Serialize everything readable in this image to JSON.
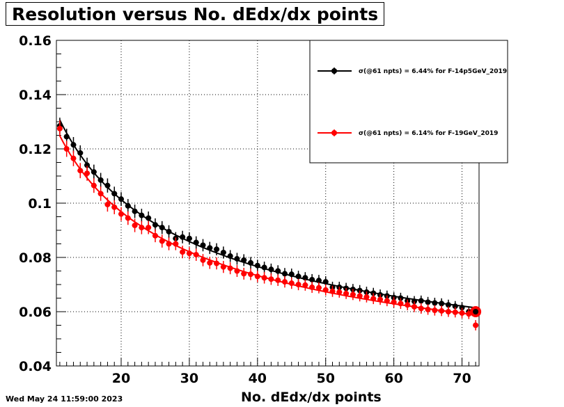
{
  "title": "Resolution versus No. dEdx/dx points",
  "timestamp": "Wed May 24 11:59:00 2023",
  "chart_data": {
    "type": "scatter",
    "title": "Resolution versus No. dEdx/dx points",
    "xlabel": "No. dEdx/dx points",
    "ylabel": "",
    "xlim": [
      10.5,
      72.5
    ],
    "ylim": [
      0.04,
      0.16
    ],
    "x_ticks": [
      "20",
      "30",
      "40",
      "50",
      "60",
      "70"
    ],
    "y_ticks": [
      "0.04",
      "0.06",
      "0.08",
      "0.1",
      "0.12",
      "0.14",
      "0.16"
    ],
    "grid": true,
    "legend_position": "top-right",
    "x": [
      11,
      12,
      13,
      14,
      15,
      16,
      17,
      18,
      19,
      20,
      21,
      22,
      23,
      24,
      25,
      26,
      27,
      28,
      29,
      30,
      31,
      32,
      33,
      34,
      35,
      36,
      37,
      38,
      39,
      40,
      41,
      42,
      43,
      44,
      45,
      46,
      47,
      48,
      49,
      50,
      51,
      52,
      53,
      54,
      55,
      56,
      57,
      58,
      59,
      60,
      61,
      62,
      63,
      64,
      65,
      66,
      67,
      68,
      69,
      70,
      71,
      72
    ],
    "series": [
      {
        "name": "σ(@61 npts) =  6.44% for F-14p5GeV_2019",
        "color": "#000000",
        "values": [
          0.1285,
          0.1245,
          0.1215,
          0.1185,
          0.114,
          0.1115,
          0.1085,
          0.1065,
          0.1035,
          0.1015,
          0.099,
          0.097,
          0.0955,
          0.0945,
          0.092,
          0.091,
          0.0895,
          0.087,
          0.0875,
          0.087,
          0.0855,
          0.0845,
          0.0835,
          0.083,
          0.0818,
          0.0805,
          0.0795,
          0.079,
          0.078,
          0.077,
          0.0763,
          0.0756,
          0.075,
          0.074,
          0.0738,
          0.073,
          0.0725,
          0.0718,
          0.0715,
          0.071,
          0.069,
          0.069,
          0.0686,
          0.0682,
          0.0678,
          0.0672,
          0.0668,
          0.0662,
          0.0658,
          0.0652,
          0.065,
          0.064,
          0.0638,
          0.064,
          0.0635,
          0.0632,
          0.063,
          0.0625,
          0.062,
          0.0615,
          0.06,
          0.06
        ]
      },
      {
        "name": "σ(@61 npts) =  6.14% for F-19GeV_2019",
        "color": "#ff0000",
        "values": [
          0.1275,
          0.12,
          0.1165,
          0.112,
          0.111,
          0.1065,
          0.1035,
          0.0995,
          0.0985,
          0.096,
          0.0945,
          0.0918,
          0.091,
          0.091,
          0.088,
          0.086,
          0.085,
          0.085,
          0.082,
          0.0815,
          0.081,
          0.079,
          0.078,
          0.0778,
          0.0765,
          0.076,
          0.075,
          0.074,
          0.0738,
          0.073,
          0.0725,
          0.072,
          0.0716,
          0.071,
          0.0705,
          0.07,
          0.0698,
          0.069,
          0.0688,
          0.068,
          0.0675,
          0.0672,
          0.0667,
          0.0663,
          0.0658,
          0.0654,
          0.0648,
          0.0645,
          0.064,
          0.0635,
          0.063,
          0.0625,
          0.0618,
          0.0612,
          0.0608,
          0.0605,
          0.0603,
          0.06,
          0.0598,
          0.0595,
          0.0592,
          0.055
        ]
      }
    ]
  }
}
